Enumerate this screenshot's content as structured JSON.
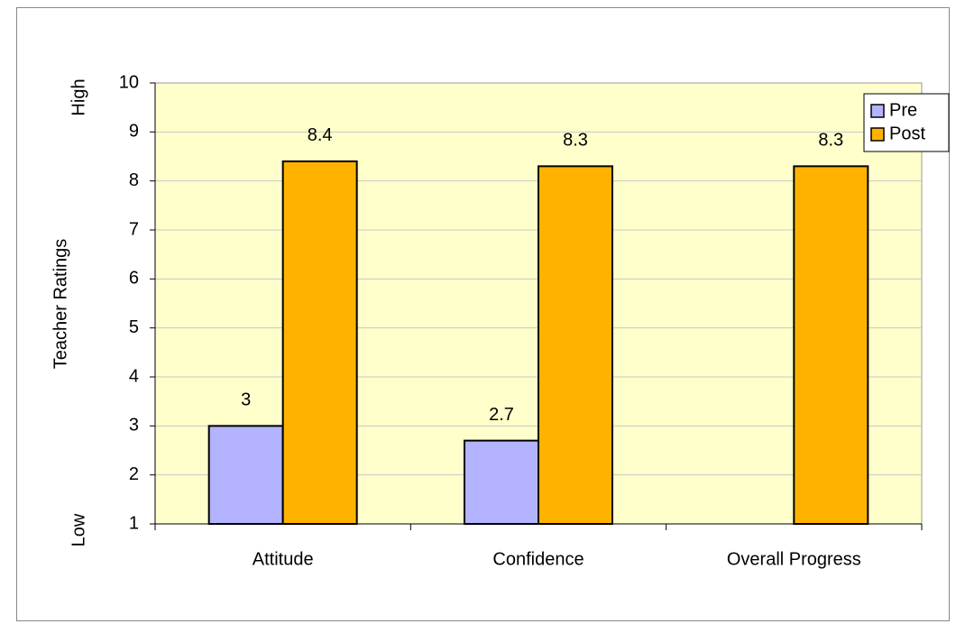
{
  "chart_data": {
    "type": "bar",
    "y_label": "Teacher Ratings",
    "annotations": [
      "High",
      "Low"
    ],
    "categories": [
      "Attitude",
      "Confidence",
      "Overall Progress"
    ],
    "series": [
      {
        "name": "Pre",
        "color": "#b3b3ff",
        "values": [
          3,
          2.7,
          null
        ]
      },
      {
        "name": "Post",
        "color": "#ffb300",
        "values": [
          8.4,
          8.3,
          8.3
        ]
      }
    ],
    "ylim": [
      1,
      10
    ],
    "yticks": [
      1,
      2,
      3,
      4,
      5,
      6,
      7,
      8,
      9,
      10
    ],
    "grid": true,
    "legend": "top-right",
    "plot_background": "#ffffcc"
  }
}
